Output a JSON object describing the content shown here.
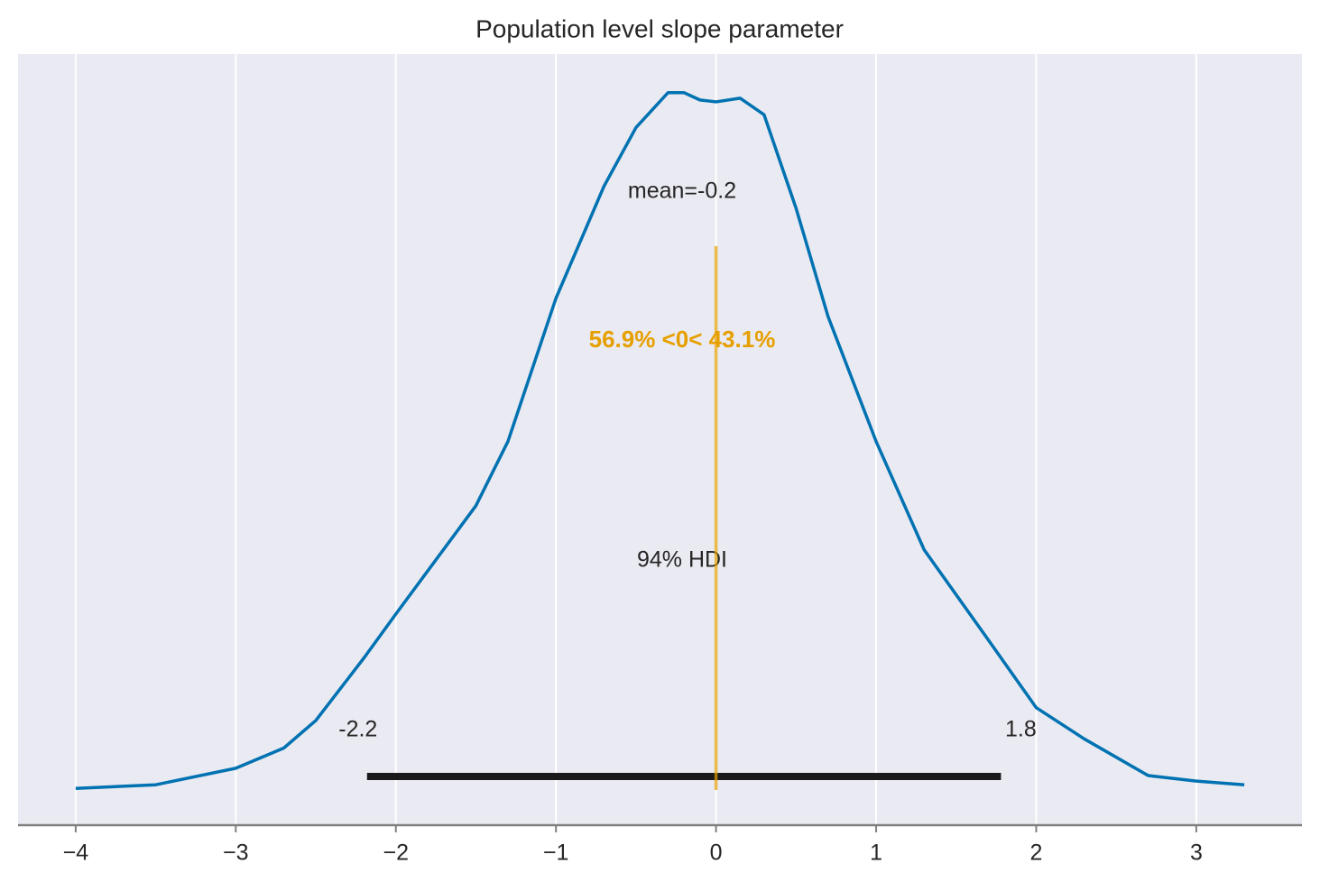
{
  "chart_data": {
    "type": "density",
    "title": "Population level slope parameter",
    "x": [
      -4,
      -3.5,
      -3,
      -2.7,
      -2.5,
      -2.2,
      -2,
      -1.5,
      -1.3,
      -1,
      -0.7,
      -0.5,
      -0.3,
      -0.2,
      -0.1,
      0,
      0.15,
      0.3,
      0.5,
      0.7,
      1,
      1.3,
      1.7,
      2,
      2.3,
      2.7,
      3,
      3.3
    ],
    "values": [
      0,
      0.002,
      0.011,
      0.022,
      0.037,
      0.071,
      0.095,
      0.154,
      0.189,
      0.267,
      0.328,
      0.36,
      0.379,
      0.379,
      0.375,
      0.374,
      0.376,
      0.367,
      0.316,
      0.257,
      0.189,
      0.13,
      0.081,
      0.044,
      0.027,
      0.007,
      0.004,
      0.002
    ],
    "color": "#0072b2",
    "xlim": [
      -4.36,
      3.66
    ],
    "ylim": [
      -0.02,
      0.4
    ],
    "xticks": [
      {
        "value": -4,
        "label": "−4"
      },
      {
        "value": -3,
        "label": "−3"
      },
      {
        "value": -2,
        "label": "−2"
      },
      {
        "value": -1,
        "label": "−1"
      },
      0,
      1,
      2,
      3
    ],
    "grid": true,
    "mean_label": "mean=-0.2",
    "hdi": {
      "label": "94% HDI",
      "lower": -2.18,
      "upper": 1.78,
      "value_labels": [
        "-2.2",
        "1.8"
      ],
      "color": "#1a1a1a"
    },
    "reference": {
      "value": 0,
      "text": "56.9% <0< 43.1%",
      "color": "#e69f00"
    }
  }
}
